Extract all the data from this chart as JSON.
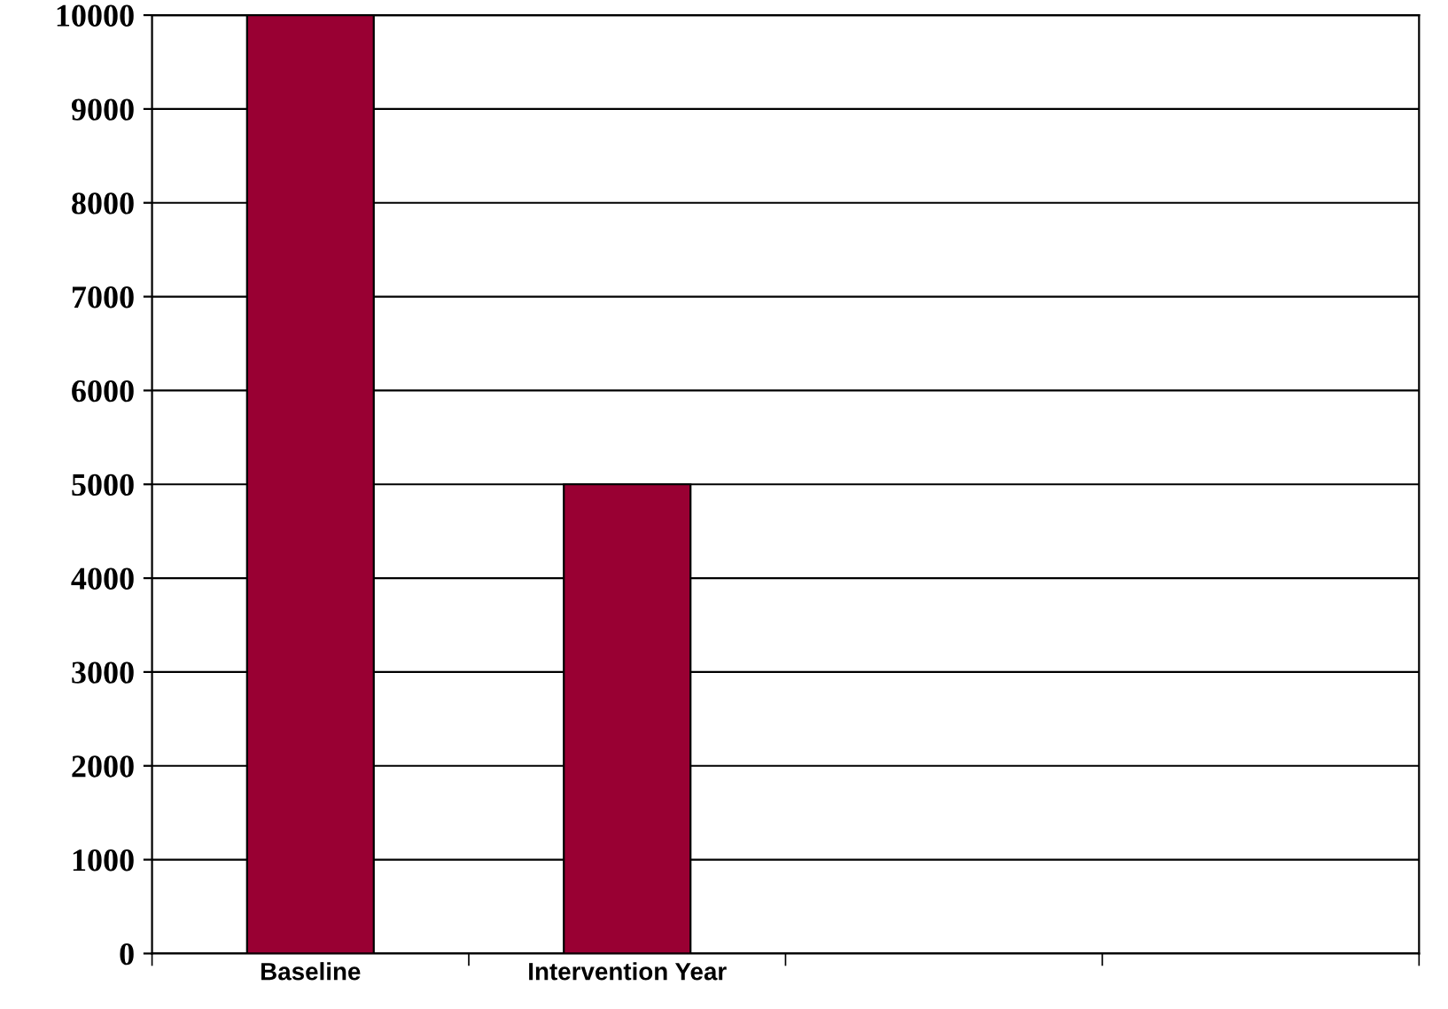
{
  "chart_data": {
    "type": "bar",
    "categories": [
      "Baseline",
      "Intervention Year",
      null,
      null
    ],
    "values": [
      10000,
      5000,
      null,
      null
    ],
    "color": "#990033",
    "ylim": [
      0,
      10000
    ],
    "yticks": [
      0,
      1000,
      2000,
      3000,
      4000,
      5000,
      6000,
      7000,
      8000,
      9000,
      10000
    ],
    "grid": "y",
    "legend": false
  }
}
